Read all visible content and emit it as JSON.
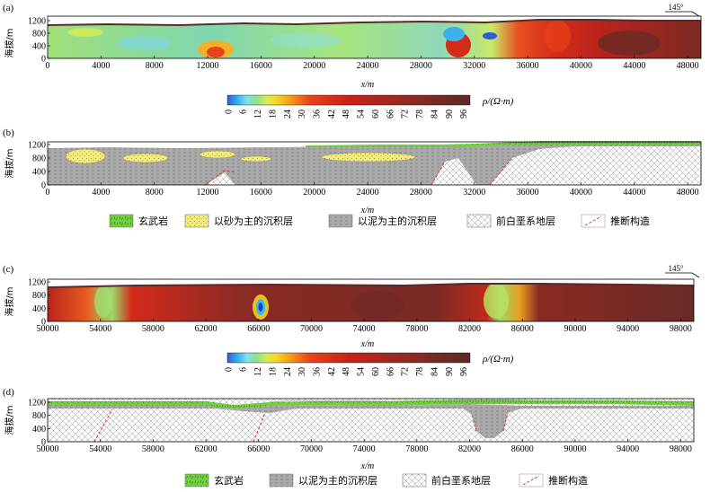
{
  "panels": {
    "a": {
      "label": "(a)",
      "ylabel": "海拔/m",
      "xlabel": "x/m",
      "azimuth": "145°",
      "xticks": [
        "0",
        "4000",
        "8000",
        "12000",
        "16000",
        "20000",
        "24000",
        "28000",
        "32000",
        "36000",
        "40000",
        "44000",
        "48000"
      ],
      "yticks": [
        "0",
        "400",
        "800",
        "1200"
      ]
    },
    "b": {
      "label": "(b)",
      "ylabel": "海拔/m",
      "xlabel": "x/m",
      "xticks": [
        "0",
        "4000",
        "8000",
        "12000",
        "16000",
        "20000",
        "24000",
        "28000",
        "32000",
        "36000",
        "40000",
        "44000",
        "48000"
      ],
      "yticks": [
        "0",
        "400",
        "800",
        "1200"
      ]
    },
    "c": {
      "label": "(c)",
      "ylabel": "海拔/m",
      "xlabel": "x/m",
      "azimuth": "145°",
      "xticks": [
        "50000",
        "54000",
        "58000",
        "62000",
        "66000",
        "70000",
        "74000",
        "78000",
        "82000",
        "86000",
        "90000",
        "94000",
        "98000"
      ],
      "yticks": [
        "0",
        "400",
        "800",
        "1200"
      ]
    },
    "d": {
      "label": "(d)",
      "ylabel": "海拔/m",
      "xlabel": "x/m",
      "xticks": [
        "50000",
        "54000",
        "58000",
        "62000",
        "66000",
        "70000",
        "74000",
        "78000",
        "82000",
        "86000",
        "90000",
        "94000",
        "98000"
      ],
      "yticks": [
        "0",
        "400",
        "800",
        "1200"
      ]
    }
  },
  "colorbar": {
    "unit": "ρ/(Ω·m)",
    "ticks": [
      "0",
      "6",
      "12",
      "18",
      "24",
      "30",
      "36",
      "42",
      "48",
      "54",
      "60",
      "66",
      "72",
      "78",
      "84",
      "90",
      "96"
    ]
  },
  "legend_b": [
    {
      "name": "玄武岩",
      "pattern": "basalt"
    },
    {
      "name": "以砂为主的沉积层",
      "pattern": "sand"
    },
    {
      "name": "以泥为主的沉积层",
      "pattern": "mud"
    },
    {
      "name": "前白垩系地层",
      "pattern": "pre"
    },
    {
      "name": "推断构造",
      "pattern": "fault"
    }
  ],
  "legend_d": [
    {
      "name": "玄武岩",
      "pattern": "basalt"
    },
    {
      "name": "以泥为主的沉积层",
      "pattern": "mud"
    },
    {
      "name": "前白垩系地层",
      "pattern": "pre"
    },
    {
      "name": "推断构造",
      "pattern": "fault"
    }
  ],
  "colors": {
    "fault": "#e0352b",
    "basalt": "#6ccf3c",
    "sand": "#f0ec7a",
    "mud": "#a9a9a9"
  }
}
